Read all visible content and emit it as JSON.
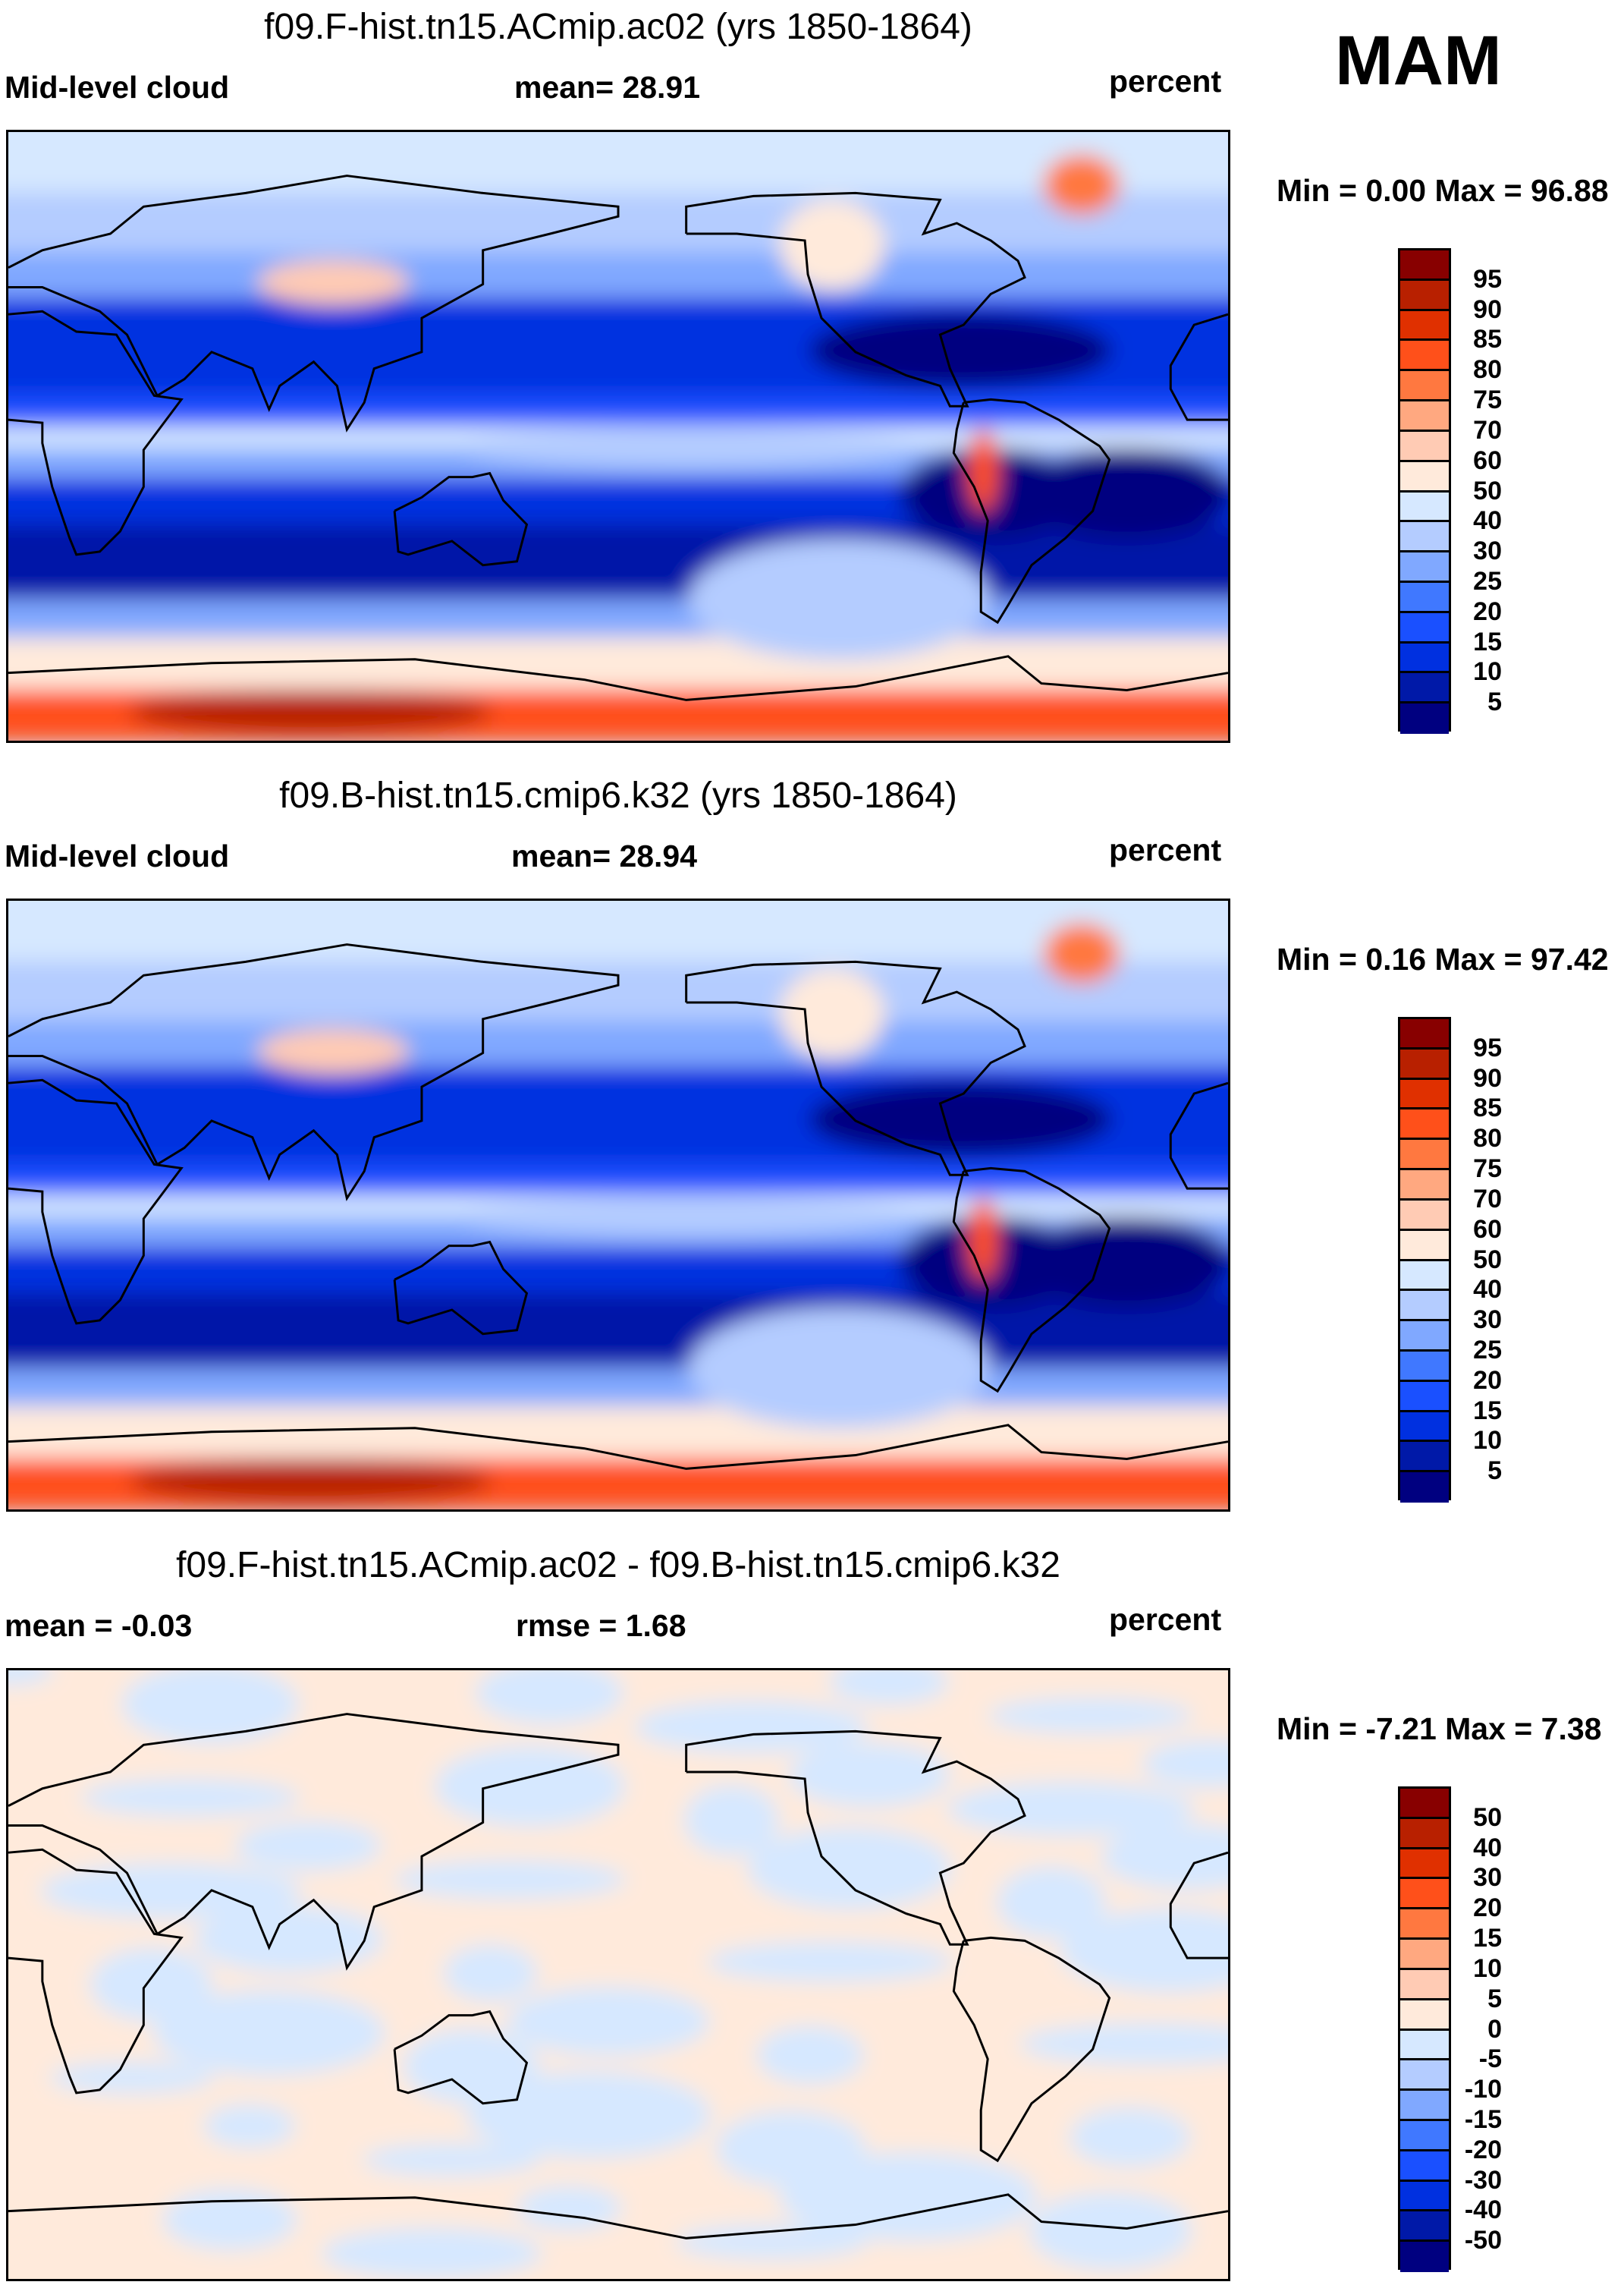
{
  "season": "MAM",
  "colors": [
    "#000080",
    "#0019a8",
    "#0030e0",
    "#1a50ff",
    "#4078ff",
    "#80a8ff",
    "#b4ccff",
    "#d6e8ff",
    "#ffeadb",
    "#ffcbb4",
    "#ffa880",
    "#ff7840",
    "#ff501a",
    "#e03000",
    "#b82000",
    "#880000"
  ],
  "chart_data": [
    {
      "type": "heatmap",
      "title": "f09.F-hist.tn15.ACmip.ac02 (yrs 1850-1864)",
      "left_label": "Mid-level cloud",
      "center_label": "mean=  28.91",
      "right_label": "percent",
      "minmax": "Min =   0.00 Max =  96.88",
      "min": 0.0,
      "max": 96.88,
      "mean": 28.91,
      "levels": [
        "95",
        "90",
        "85",
        "80",
        "75",
        "70",
        "60",
        "50",
        "40",
        "30",
        "25",
        "20",
        "15",
        "10",
        "5"
      ],
      "field": "full"
    },
    {
      "type": "heatmap",
      "title": "f09.B-hist.tn15.cmip6.k32 (yrs 1850-1864)",
      "left_label": "Mid-level cloud",
      "center_label": "mean=  28.94",
      "right_label": "percent",
      "minmax": "Min =   0.16 Max =  97.42",
      "min": 0.16,
      "max": 97.42,
      "mean": 28.94,
      "levels": [
        "95",
        "90",
        "85",
        "80",
        "75",
        "70",
        "60",
        "50",
        "40",
        "30",
        "25",
        "20",
        "15",
        "10",
        "5"
      ],
      "field": "full"
    },
    {
      "type": "heatmap",
      "title": "f09.F-hist.tn15.ACmip.ac02 - f09.B-hist.tn15.cmip6.k32",
      "left_label": "mean =  -0.03",
      "center_label": "rmse =   1.68",
      "right_label": "percent",
      "minmax": "Min =  -7.21 Max =   7.38",
      "min": -7.21,
      "max": 7.38,
      "mean": -0.03,
      "rmse": 1.68,
      "levels": [
        "50",
        "40",
        "30",
        "20",
        "15",
        "10",
        "5",
        "0",
        "-5",
        "-10",
        "-15",
        "-20",
        "-30",
        "-40",
        "-50"
      ],
      "field": "diff"
    }
  ]
}
